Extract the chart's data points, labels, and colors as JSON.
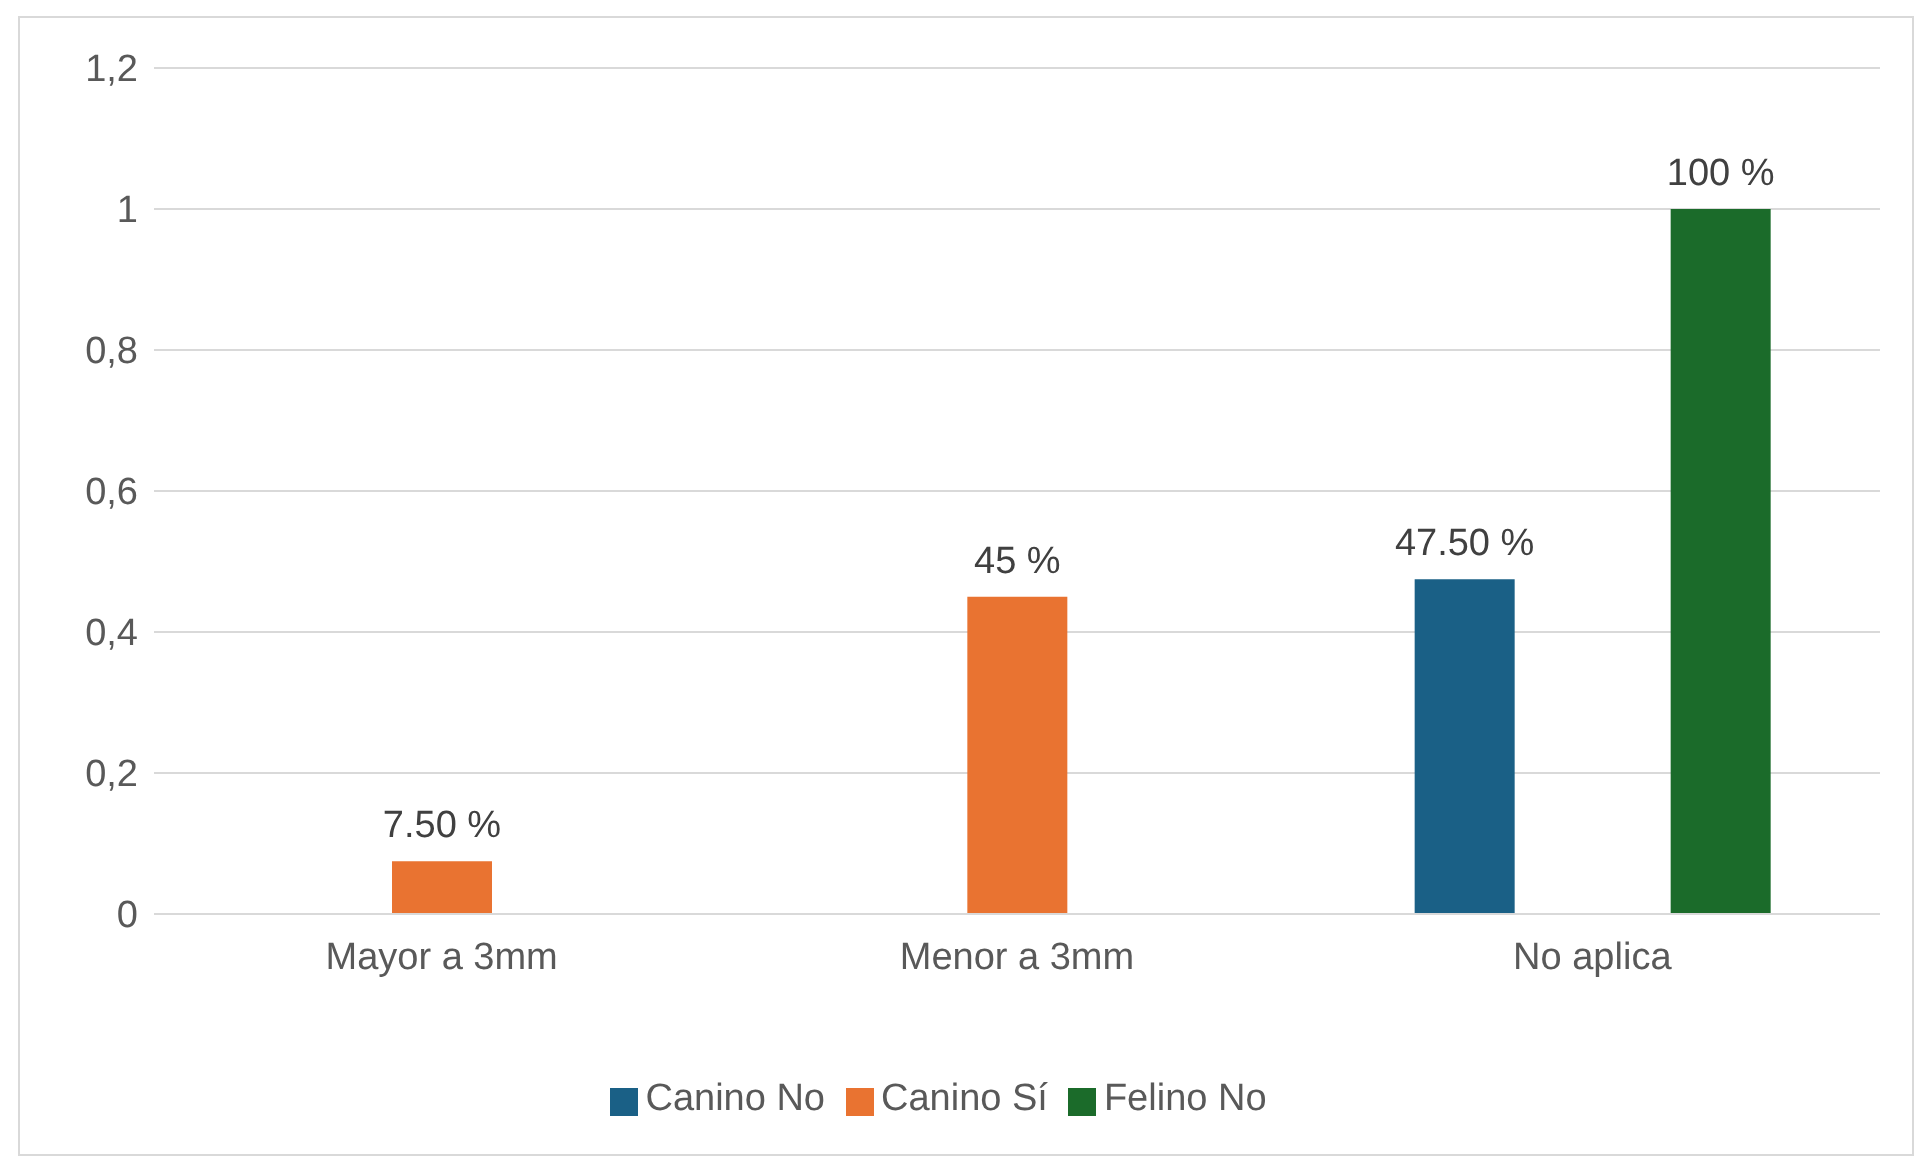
{
  "chart_data": {
    "type": "bar",
    "categories": [
      "Mayor a 3mm",
      "Menor a 3mm",
      "No aplica"
    ],
    "series": [
      {
        "name": "Canino No",
        "color": "#1a6086",
        "values": [
          null,
          null,
          0.475
        ],
        "value_labels": [
          null,
          null,
          "47.50 %"
        ]
      },
      {
        "name": "Canino Sí",
        "color": "#e97331",
        "values": [
          0.075,
          0.45,
          null
        ],
        "value_labels": [
          "7.50 %",
          "45 %",
          null
        ]
      },
      {
        "name": "Felino No",
        "color": "#1b6b2a",
        "values": [
          null,
          null,
          1
        ],
        "value_labels": [
          null,
          null,
          "100 %"
        ]
      }
    ],
    "ylim": [
      0,
      1.2
    ],
    "yticks": [
      0,
      {
        "value": 0.2,
        "label": "0,2"
      },
      {
        "value": 0.4,
        "label": "0,4"
      },
      {
        "value": 0.6,
        "label": "0,6"
      },
      {
        "value": 0.8,
        "label": "0,8"
      },
      1,
      {
        "value": 1.2,
        "label": "1,2"
      }
    ],
    "grid": "y",
    "legend": "bottom"
  }
}
